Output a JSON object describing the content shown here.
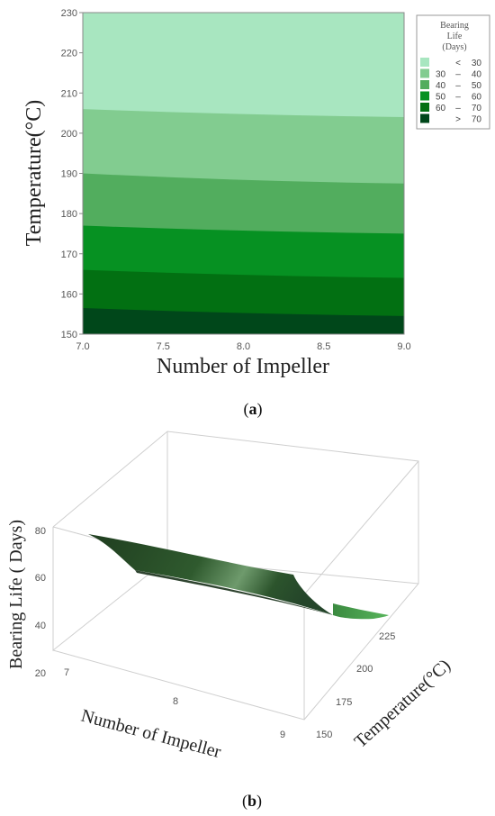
{
  "chart_data": [
    {
      "type": "contour",
      "panel": "a",
      "xlabel": "Number of Impeller",
      "ylabel": "Temperature(°C)",
      "xlim": [
        7.0,
        9.0
      ],
      "ylim": [
        150,
        230
      ],
      "x_ticks": [
        "7.0",
        "7.5",
        "8.0",
        "8.5",
        "9.0"
      ],
      "y_ticks": [
        "150",
        "160",
        "170",
        "180",
        "190",
        "200",
        "210",
        "220",
        "230"
      ],
      "legend": {
        "title_lines": [
          "Bearing",
          "Life",
          "(Days)"
        ],
        "placement": "top-right",
        "entries": [
          {
            "low": "<",
            "high": "30",
            "color": "#a8e6c0"
          },
          {
            "low": "30",
            "high": "40",
            "color": "#82cc90"
          },
          {
            "low": "40",
            "high": "50",
            "color": "#52ad5e"
          },
          {
            "low": "50",
            "high": "60",
            "color": "#069122"
          },
          {
            "low": "60",
            "high": "70",
            "color": "#027012"
          },
          {
            "low": ">",
            "high": "70",
            "color": "#00471a"
          }
        ]
      },
      "contour_lines": [
        {
          "level": 70,
          "x": [
            7.0,
            8.0,
            9.0
          ],
          "y": [
            156.5,
            155.0,
            154.5
          ]
        },
        {
          "level": 60,
          "x": [
            7.0,
            8.0,
            9.0
          ],
          "y": [
            166.0,
            164.5,
            164.0
          ]
        },
        {
          "level": 50,
          "x": [
            7.0,
            8.0,
            9.0
          ],
          "y": [
            177.0,
            175.5,
            175.0
          ]
        },
        {
          "level": 40,
          "x": [
            7.0,
            8.0,
            9.0
          ],
          "y": [
            190.0,
            188.0,
            187.5
          ]
        },
        {
          "level": 30,
          "x": [
            7.0,
            8.0,
            9.0
          ],
          "y": [
            206.0,
            204.5,
            204.0
          ]
        }
      ]
    },
    {
      "type": "surface",
      "panel": "b",
      "xlabel": "Number of Impeller",
      "ylabel": "Temperature(°C)",
      "zlabel": "Bearing Life ( Days)",
      "x_ticks": [
        "7",
        "8",
        "9"
      ],
      "y_ticks": [
        "150",
        "175",
        "200",
        "225"
      ],
      "z_ticks": [
        "20",
        "40",
        "60",
        "80"
      ],
      "surface_color": "#2f5a2e",
      "highlight_color": "#58b55c"
    }
  ],
  "labels": {
    "panel_a": "a",
    "panel_b": "b"
  }
}
